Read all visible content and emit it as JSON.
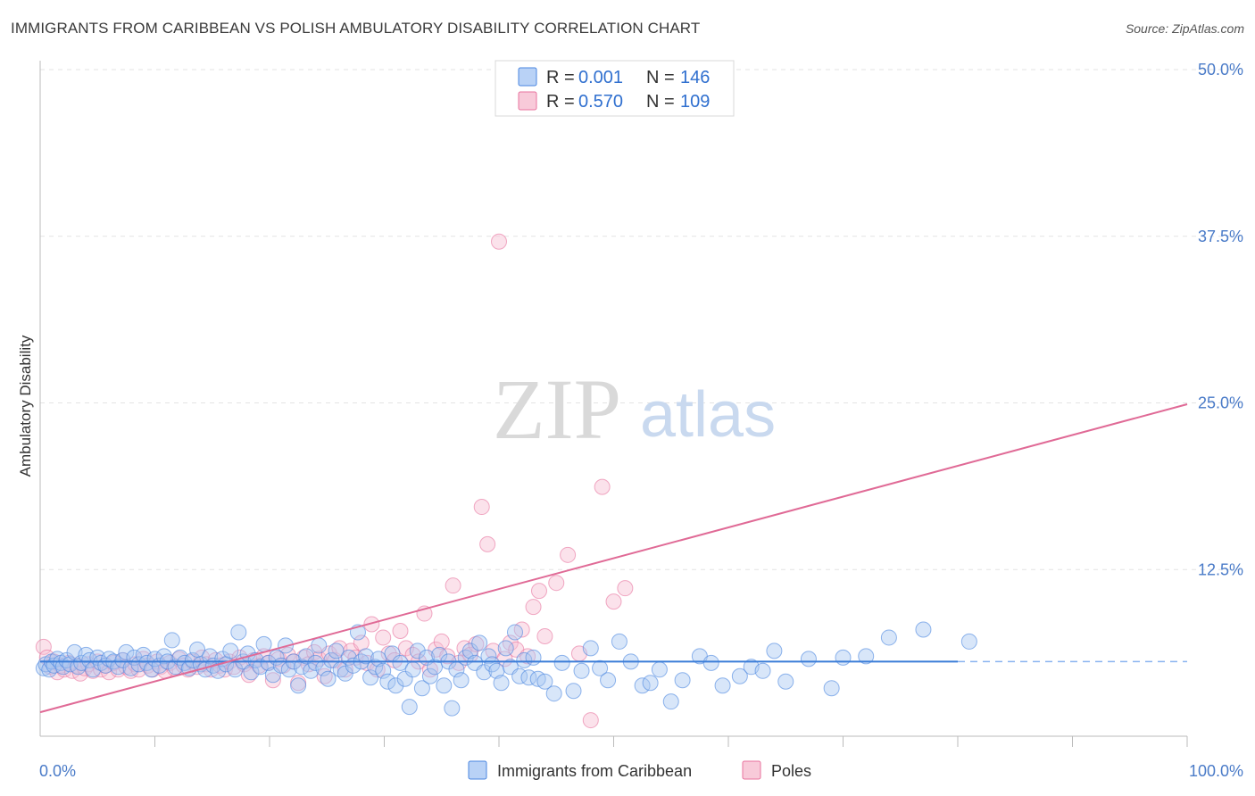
{
  "header": {
    "title": "IMMIGRANTS FROM CARIBBEAN VS POLISH AMBULATORY DISABILITY CORRELATION CHART",
    "source": "Source: ZipAtlas.com"
  },
  "watermark": {
    "part1": "ZIP",
    "part2": "atlas"
  },
  "legend_top": {
    "rows": [
      {
        "r_label": "R =",
        "r_value": "0.001",
        "n_label": "N =",
        "n_value": "146",
        "color": "#8ab4f0"
      },
      {
        "r_label": "R =",
        "r_value": "0.570",
        "n_label": "N =",
        "n_value": "109",
        "color": "#f4a6bf"
      }
    ]
  },
  "legend_bottom": {
    "items": [
      {
        "label": "Immigrants from Caribbean",
        "color": "#8ab4f0"
      },
      {
        "label": "Poles",
        "color": "#f4a6bf"
      }
    ]
  },
  "chart_data": {
    "type": "scatter",
    "title": "IMMIGRANTS FROM CARIBBEAN VS POLISH AMBULATORY DISABILITY CORRELATION CHART",
    "xlabel": "",
    "ylabel": "Ambulatory Disability",
    "xlim": [
      0,
      100
    ],
    "ylim": [
      0,
      50
    ],
    "x_tick_labels": [
      "0.0%",
      "100.0%"
    ],
    "y_ticks": [
      12.5,
      25.0,
      37.5,
      50.0
    ],
    "y_tick_labels": [
      "12.5%",
      "25.0%",
      "37.5%",
      "50.0%"
    ],
    "grid": true,
    "legend_position": "top-center",
    "colors": {
      "caribbean": "#4a86e0",
      "poles": "#e8739e",
      "caribbean_fill": "#a9c8f2",
      "poles_fill": "#f7bfd2"
    },
    "series": [
      {
        "name": "Immigrants from Caribbean",
        "trend": {
          "x": [
            0,
            80
          ],
          "y": [
            5.6,
            5.6
          ],
          "dashed_extension_to": 100
        },
        "points": [
          [
            0.3,
            5.1
          ],
          [
            0.5,
            5.4
          ],
          [
            0.8,
            5.0
          ],
          [
            1,
            5.6
          ],
          [
            1.2,
            5.3
          ],
          [
            1.5,
            5.8
          ],
          [
            1.8,
            5.5
          ],
          [
            2,
            5.2
          ],
          [
            2.3,
            5.7
          ],
          [
            2.6,
            5.4
          ],
          [
            3,
            6.3
          ],
          [
            3.3,
            5.2
          ],
          [
            3.6,
            5.5
          ],
          [
            4,
            6.1
          ],
          [
            4.3,
            5.7
          ],
          [
            4.6,
            5.0
          ],
          [
            5,
            5.9
          ],
          [
            5.3,
            5.5
          ],
          [
            5.7,
            5.3
          ],
          [
            6,
            5.8
          ],
          [
            6.4,
            5.6
          ],
          [
            6.8,
            5.2
          ],
          [
            7.2,
            5.7
          ],
          [
            7.5,
            6.3
          ],
          [
            7.9,
            5.1
          ],
          [
            8.2,
            5.9
          ],
          [
            8.6,
            5.4
          ],
          [
            9,
            6.1
          ],
          [
            9.3,
            5.5
          ],
          [
            9.7,
            5.0
          ],
          [
            10,
            5.8
          ],
          [
            10.4,
            5.3
          ],
          [
            10.8,
            6.0
          ],
          [
            11.1,
            5.6
          ],
          [
            11.5,
            7.2
          ],
          [
            11.8,
            5.2
          ],
          [
            12.2,
            5.9
          ],
          [
            12.6,
            5.5
          ],
          [
            13,
            5.1
          ],
          [
            13.3,
            5.7
          ],
          [
            13.7,
            6.5
          ],
          [
            14,
            5.4
          ],
          [
            14.4,
            5.0
          ],
          [
            14.8,
            6.0
          ],
          [
            15.1,
            5.3
          ],
          [
            15.5,
            4.9
          ],
          [
            15.9,
            5.8
          ],
          [
            16.2,
            5.4
          ],
          [
            16.6,
            6.4
          ],
          [
            17,
            5.0
          ],
          [
            17.3,
            7.8
          ],
          [
            17.7,
            5.6
          ],
          [
            18.1,
            6.2
          ],
          [
            18.4,
            4.8
          ],
          [
            18.8,
            5.7
          ],
          [
            19.2,
            5.2
          ],
          [
            19.5,
            6.9
          ],
          [
            19.9,
            5.5
          ],
          [
            20.3,
            4.6
          ],
          [
            20.6,
            5.9
          ],
          [
            21,
            5.3
          ],
          [
            21.4,
            6.8
          ],
          [
            21.7,
            5.0
          ],
          [
            22.1,
            5.6
          ],
          [
            22.5,
            3.8
          ],
          [
            22.8,
            5.2
          ],
          [
            23.2,
            6.0
          ],
          [
            23.6,
            4.9
          ],
          [
            24,
            5.5
          ],
          [
            24.3,
            6.8
          ],
          [
            24.7,
            5.1
          ],
          [
            25.1,
            4.3
          ],
          [
            25.4,
            5.7
          ],
          [
            25.8,
            6.4
          ],
          [
            26.2,
            5.0
          ],
          [
            26.6,
            4.7
          ],
          [
            26.9,
            5.9
          ],
          [
            27.3,
            5.3
          ],
          [
            27.7,
            7.8
          ],
          [
            28,
            5.6
          ],
          [
            28.4,
            6.0
          ],
          [
            28.8,
            4.4
          ],
          [
            29.2,
            5.2
          ],
          [
            29.5,
            5.8
          ],
          [
            29.9,
            4.9
          ],
          [
            30.3,
            4.1
          ],
          [
            30.7,
            6.2
          ],
          [
            31,
            3.8
          ],
          [
            31.4,
            5.5
          ],
          [
            31.8,
            4.3
          ],
          [
            32.2,
            2.2
          ],
          [
            32.5,
            5.0
          ],
          [
            32.9,
            6.4
          ],
          [
            33.3,
            3.6
          ],
          [
            33.7,
            5.9
          ],
          [
            34,
            4.5
          ],
          [
            34.4,
            5.2
          ],
          [
            34.8,
            6.1
          ],
          [
            35.2,
            3.8
          ],
          [
            35.6,
            5.6
          ],
          [
            35.9,
            2.1
          ],
          [
            36.3,
            5.0
          ],
          [
            36.7,
            4.2
          ],
          [
            37.1,
            5.9
          ],
          [
            37.5,
            6.4
          ],
          [
            37.9,
            5.5
          ],
          [
            38.3,
            7.0
          ],
          [
            38.7,
            4.8
          ],
          [
            39.1,
            6.0
          ],
          [
            39.4,
            5.4
          ],
          [
            39.8,
            4.9
          ],
          [
            40.2,
            4.0
          ],
          [
            40.6,
            6.6
          ],
          [
            41,
            5.2
          ],
          [
            41.4,
            7.8
          ],
          [
            41.8,
            4.5
          ],
          [
            42.2,
            5.7
          ],
          [
            42.6,
            4.4
          ],
          [
            43,
            5.9
          ],
          [
            43.4,
            4.3
          ],
          [
            44,
            4.1
          ],
          [
            44.8,
            3.2
          ],
          [
            45.5,
            5.5
          ],
          [
            46.5,
            3.4
          ],
          [
            47.2,
            4.9
          ],
          [
            48,
            6.6
          ],
          [
            48.8,
            5.1
          ],
          [
            49.5,
            4.2
          ],
          [
            50.5,
            7.1
          ],
          [
            51.5,
            5.6
          ],
          [
            52.5,
            3.8
          ],
          [
            53.2,
            4.0
          ],
          [
            54,
            5.0
          ],
          [
            55,
            2.6
          ],
          [
            56,
            4.2
          ],
          [
            57.5,
            6.0
          ],
          [
            58.5,
            5.5
          ],
          [
            59.5,
            3.8
          ],
          [
            61,
            4.5
          ],
          [
            62,
            5.2
          ],
          [
            63,
            4.9
          ],
          [
            64,
            6.4
          ],
          [
            65,
            4.1
          ],
          [
            67,
            5.8
          ],
          [
            69,
            3.6
          ],
          [
            70,
            5.9
          ],
          [
            72,
            6.0
          ],
          [
            74,
            7.4
          ],
          [
            77,
            8.0
          ],
          [
            81,
            7.1
          ]
        ]
      },
      {
        "name": "Poles",
        "trend": {
          "x": [
            0,
            100
          ],
          "y": [
            1.8,
            24.9
          ]
        },
        "points": [
          [
            0.3,
            6.7
          ],
          [
            0.6,
            5.9
          ],
          [
            0.9,
            5.2
          ],
          [
            1.2,
            5.6
          ],
          [
            1.5,
            4.8
          ],
          [
            1.8,
            5.3
          ],
          [
            2.1,
            5.0
          ],
          [
            2.5,
            5.5
          ],
          [
            2.8,
            4.9
          ],
          [
            3.2,
            5.3
          ],
          [
            3.5,
            4.7
          ],
          [
            3.9,
            5.1
          ],
          [
            4.2,
            5.4
          ],
          [
            4.6,
            4.9
          ],
          [
            5,
            5.6
          ],
          [
            5.3,
            5.0
          ],
          [
            5.7,
            5.3
          ],
          [
            6,
            4.8
          ],
          [
            6.4,
            5.5
          ],
          [
            6.8,
            5.0
          ],
          [
            7.2,
            5.7
          ],
          [
            7.5,
            5.2
          ],
          [
            7.9,
            4.9
          ],
          [
            8.3,
            5.4
          ],
          [
            8.6,
            5.0
          ],
          [
            9,
            5.8
          ],
          [
            9.4,
            5.3
          ],
          [
            9.8,
            5.0
          ],
          [
            10.2,
            5.6
          ],
          [
            10.5,
            5.2
          ],
          [
            10.9,
            4.9
          ],
          [
            11.3,
            5.5
          ],
          [
            11.7,
            5.1
          ],
          [
            12.1,
            5.8
          ],
          [
            12.5,
            5.3
          ],
          [
            12.9,
            5.0
          ],
          [
            13.3,
            5.6
          ],
          [
            13.7,
            5.2
          ],
          [
            14.1,
            5.9
          ],
          [
            14.5,
            5.4
          ],
          [
            14.9,
            5.0
          ],
          [
            15.3,
            5.7
          ],
          [
            15.7,
            5.3
          ],
          [
            16.1,
            5.0
          ],
          [
            16.5,
            5.6
          ],
          [
            16.9,
            5.2
          ],
          [
            17.4,
            5.9
          ],
          [
            17.8,
            5.4
          ],
          [
            18.2,
            4.6
          ],
          [
            18.6,
            5.7
          ],
          [
            19.1,
            5.3
          ],
          [
            19.5,
            6.0
          ],
          [
            19.9,
            5.5
          ],
          [
            20.3,
            4.2
          ],
          [
            20.8,
            5.8
          ],
          [
            21.2,
            5.3
          ],
          [
            21.6,
            6.1
          ],
          [
            22.1,
            5.6
          ],
          [
            22.5,
            4.0
          ],
          [
            23,
            5.9
          ],
          [
            23.4,
            5.4
          ],
          [
            23.9,
            6.3
          ],
          [
            24.3,
            5.8
          ],
          [
            24.8,
            4.5
          ],
          [
            25.2,
            6.2
          ],
          [
            25.7,
            5.7
          ],
          [
            26.1,
            6.6
          ],
          [
            26.6,
            5.0
          ],
          [
            27.1,
            6.4
          ],
          [
            27.5,
            5.9
          ],
          [
            28,
            7.0
          ],
          [
            28.5,
            5.5
          ],
          [
            28.9,
            8.4
          ],
          [
            29.4,
            5.0
          ],
          [
            29.9,
            7.4
          ],
          [
            30.4,
            6.2
          ],
          [
            30.9,
            5.7
          ],
          [
            31.4,
            7.9
          ],
          [
            31.9,
            6.6
          ],
          [
            32.5,
            6.1
          ],
          [
            33,
            5.6
          ],
          [
            33.5,
            9.2
          ],
          [
            34,
            5.0
          ],
          [
            34.5,
            6.5
          ],
          [
            35,
            7.1
          ],
          [
            35.5,
            6.0
          ],
          [
            36,
            11.3
          ],
          [
            36.5,
            5.5
          ],
          [
            37,
            6.6
          ],
          [
            37.5,
            6.1
          ],
          [
            38.5,
            17.2
          ],
          [
            38,
            6.9
          ],
          [
            39,
            14.4
          ],
          [
            39.5,
            6.4
          ],
          [
            40,
            37.1
          ],
          [
            40.5,
            5.8
          ],
          [
            41,
            7.0
          ],
          [
            41.5,
            6.5
          ],
          [
            42,
            8.0
          ],
          [
            42.5,
            6.0
          ],
          [
            43,
            9.7
          ],
          [
            43.5,
            10.9
          ],
          [
            44,
            7.5
          ],
          [
            45,
            11.5
          ],
          [
            46,
            13.6
          ],
          [
            47,
            6.2
          ],
          [
            48,
            1.2
          ],
          [
            49,
            18.7
          ],
          [
            50,
            10.1
          ],
          [
            51,
            11.1
          ]
        ]
      }
    ]
  }
}
